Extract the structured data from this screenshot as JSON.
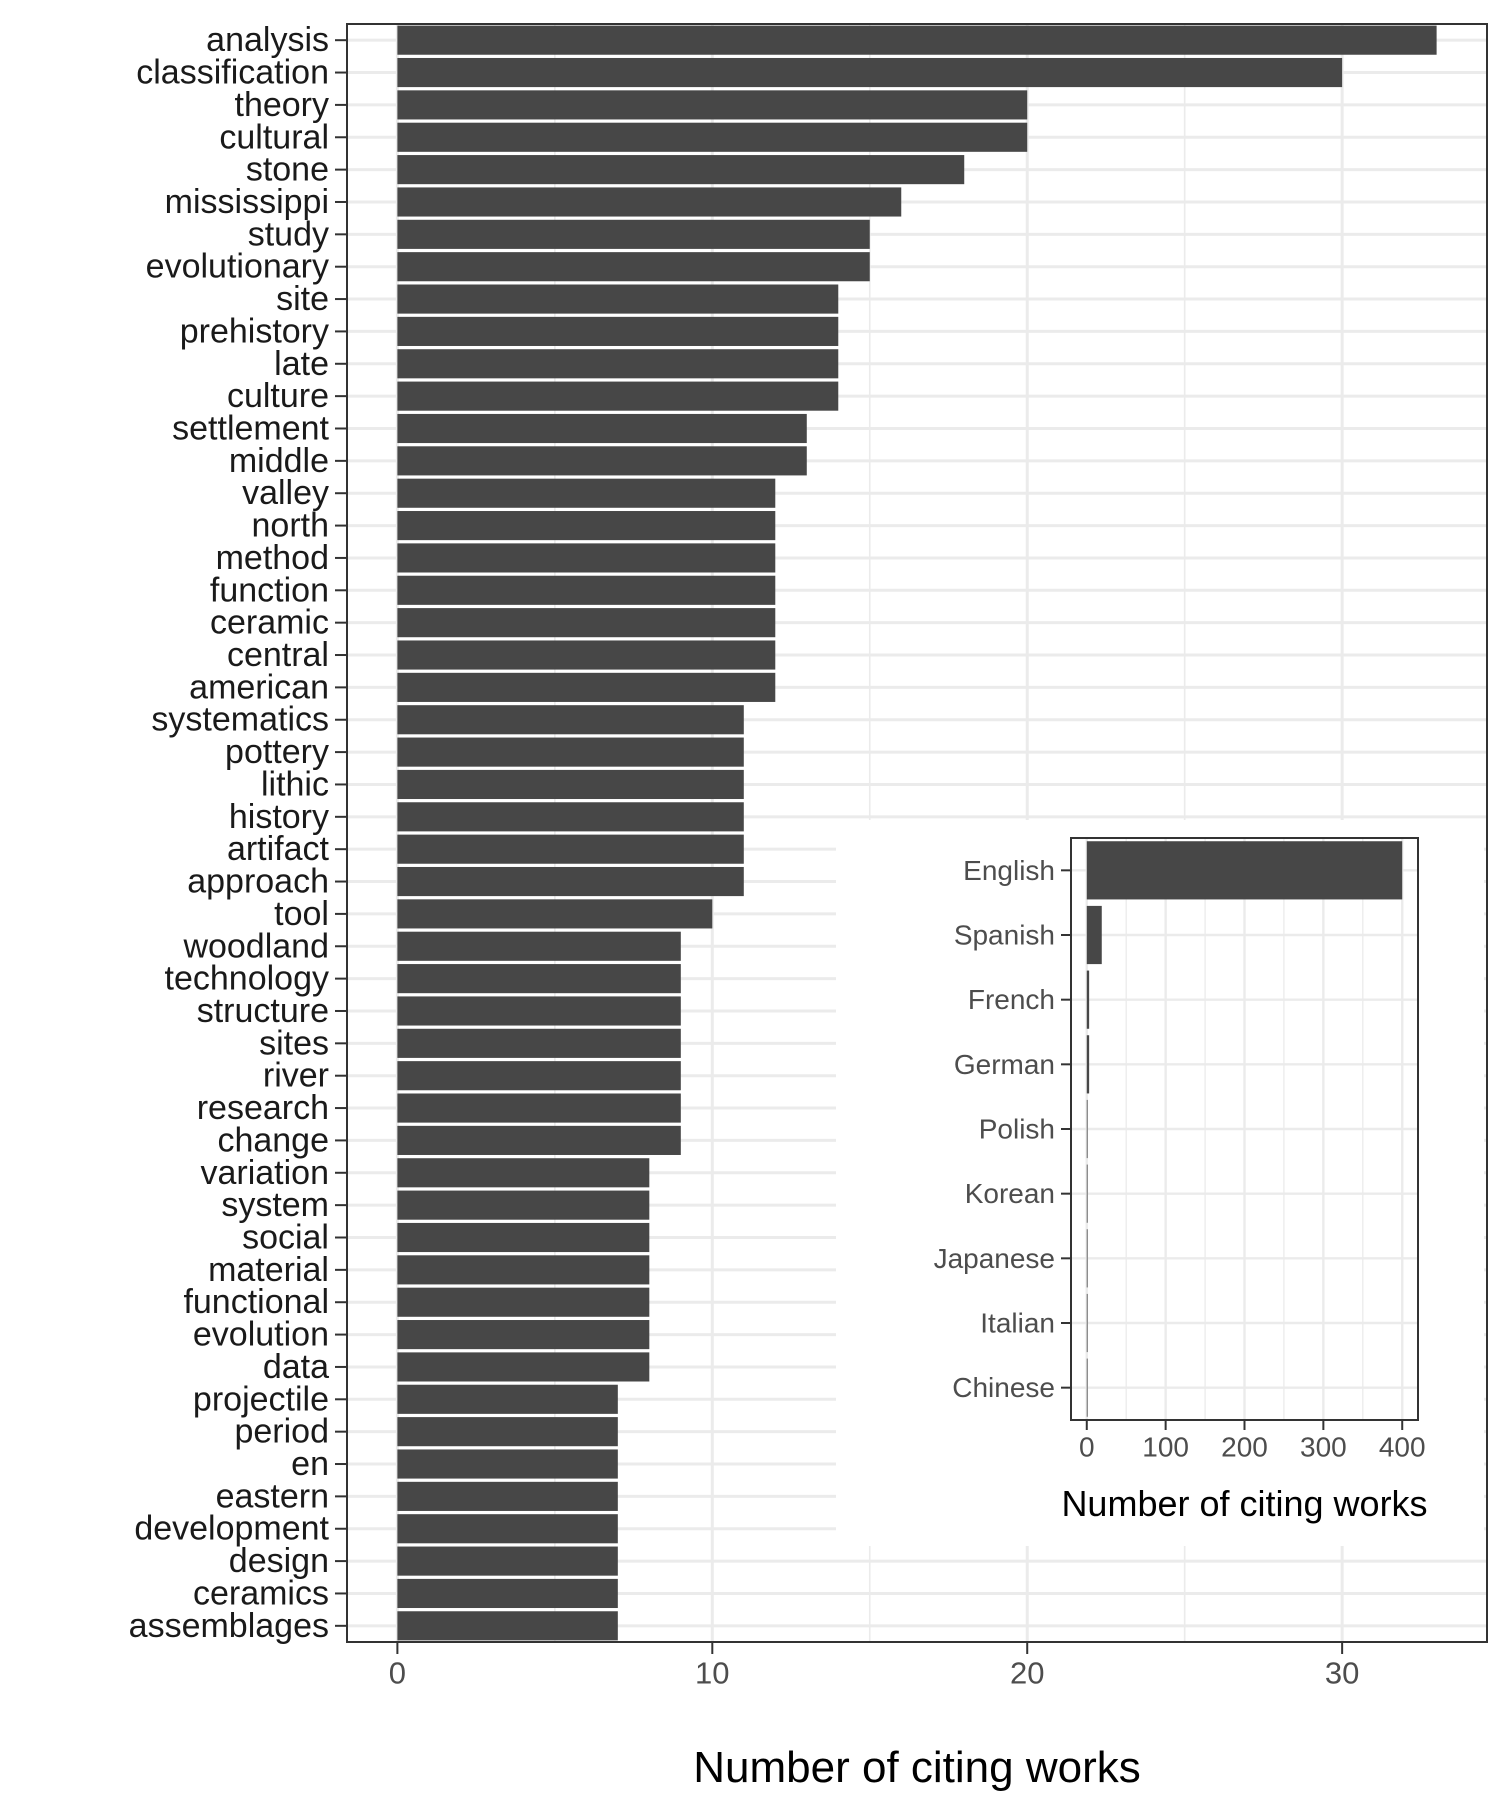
{
  "chart_data": [
    {
      "type": "bar",
      "orientation": "horizontal",
      "xlabel": "Number of citing works",
      "ylabel": "",
      "xlim": [
        -1.6,
        34.6
      ],
      "x_ticks": [
        0,
        10,
        20,
        30
      ],
      "grid": true,
      "bar_color": "#474747",
      "categories": [
        "analysis",
        "classification",
        "theory",
        "cultural",
        "stone",
        "mississippi",
        "study",
        "evolutionary",
        "site",
        "prehistory",
        "late",
        "culture",
        "settlement",
        "middle",
        "valley",
        "north",
        "method",
        "function",
        "ceramic",
        "central",
        "american",
        "systematics",
        "pottery",
        "lithic",
        "history",
        "artifact",
        "approach",
        "tool",
        "woodland",
        "technology",
        "structure",
        "sites",
        "river",
        "research",
        "change",
        "variation",
        "system",
        "social",
        "material",
        "functional",
        "evolution",
        "data",
        "projectile",
        "period",
        "en",
        "eastern",
        "development",
        "design",
        "ceramics",
        "assemblages"
      ],
      "values": [
        33,
        30,
        20,
        20,
        18,
        16,
        15,
        15,
        14,
        14,
        14,
        14,
        13,
        13,
        12,
        12,
        12,
        12,
        12,
        12,
        12,
        11,
        11,
        11,
        11,
        11,
        11,
        10,
        9,
        9,
        9,
        9,
        9,
        9,
        9,
        8,
        8,
        8,
        8,
        8,
        8,
        8,
        7,
        7,
        7,
        7,
        7,
        7,
        7,
        7
      ]
    },
    {
      "type": "bar",
      "orientation": "horizontal",
      "xlabel": "Number of citing works",
      "ylabel": "",
      "xlim": [
        -20,
        420
      ],
      "x_ticks": [
        0,
        100,
        200,
        300,
        400
      ],
      "grid": true,
      "bar_color": "#474747",
      "categories": [
        "English",
        "Spanish",
        "French",
        "German",
        "Polish",
        "Korean",
        "Japanese",
        "Italian",
        "Chinese"
      ],
      "values": [
        400,
        19,
        3,
        3,
        1,
        1,
        1,
        1,
        1
      ]
    }
  ]
}
